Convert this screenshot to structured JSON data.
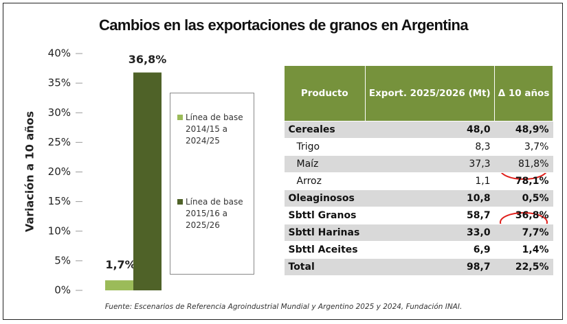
{
  "chart_data": {
    "type": "bar",
    "title": "Cambios en las exportaciones de granos en Argentina",
    "ylabel": "Variación a 10 años",
    "categories": [
      null
    ],
    "series": [
      {
        "name": "Línea de base 2014/15 a 2024/25",
        "color": "#9bbb59",
        "values": [
          1.7
        ],
        "value_labels": [
          "1,7%"
        ]
      },
      {
        "name": "Línea de base 2015/16 a 2025/26",
        "color": "#4f6228",
        "values": [
          36.8
        ],
        "value_labels": [
          "36,8%"
        ]
      }
    ],
    "ylim": [
      0,
      40
    ],
    "yticks": [
      {
        "value": 0,
        "label": "0%"
      },
      {
        "value": 5,
        "label": "5%"
      },
      {
        "value": 10,
        "label": "10%"
      },
      {
        "value": 15,
        "label": "15%"
      },
      {
        "value": 20,
        "label": "20%"
      },
      {
        "value": 25,
        "label": "25%"
      },
      {
        "value": 30,
        "label": "30%"
      },
      {
        "value": 35,
        "label": "35%"
      },
      {
        "value": 40,
        "label": "40%"
      }
    ],
    "grid": false
  },
  "table": {
    "header": [
      "Producto",
      "Export. 2025/2026 (Mt)",
      "Δ 10 años"
    ],
    "rows": [
      [
        "Cereales",
        "48,0",
        "48,9%"
      ],
      [
        "Trigo",
        "8,3",
        "3,7%"
      ],
      [
        "Maíz",
        "37,3",
        "81,8%"
      ],
      [
        "Arroz",
        "1,1",
        "78,1%"
      ],
      [
        "Oleaginosos",
        "10,8",
        "0,5%"
      ],
      [
        "Sbttl Granos",
        "58,7",
        "36,8%"
      ],
      [
        "Sbttl Harinas",
        "33,0",
        "7,7%"
      ],
      [
        "Sbttl Aceites",
        "6,9",
        "1,4%"
      ],
      [
        "Total",
        "98,7",
        "22,5%"
      ]
    ]
  },
  "source": "Fuente: Escenarios de Referencia Agroindustrial Mundial y Argentino 2025 y 2024, Fundación INAI."
}
